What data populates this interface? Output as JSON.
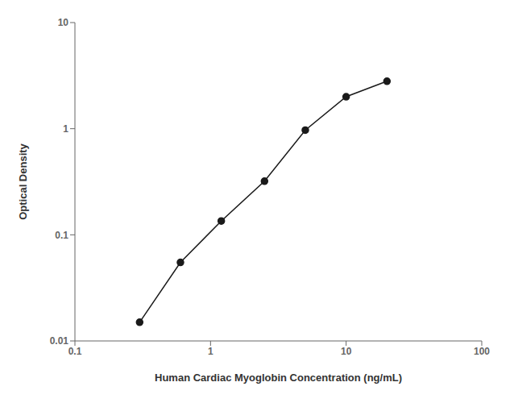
{
  "chart_data": {
    "type": "line",
    "x": [
      0.3,
      0.6,
      1.2,
      2.5,
      5.0,
      10.0,
      20.0
    ],
    "values": [
      0.015,
      0.055,
      0.135,
      0.32,
      0.97,
      2.0,
      2.8
    ],
    "xlabel": "Human Cardiac Myoglobin Concentration (ng/mL)",
    "ylabel": "Optical Density",
    "log": true,
    "xlim": [
      0.1,
      100
    ],
    "ylim": [
      0.01,
      10
    ],
    "xticks": [
      0.1,
      1,
      10,
      100
    ],
    "yticks": [
      0.01,
      0.1,
      1,
      10
    ],
    "color": "#1a1a1a",
    "marker": "circle",
    "grid": false
  }
}
